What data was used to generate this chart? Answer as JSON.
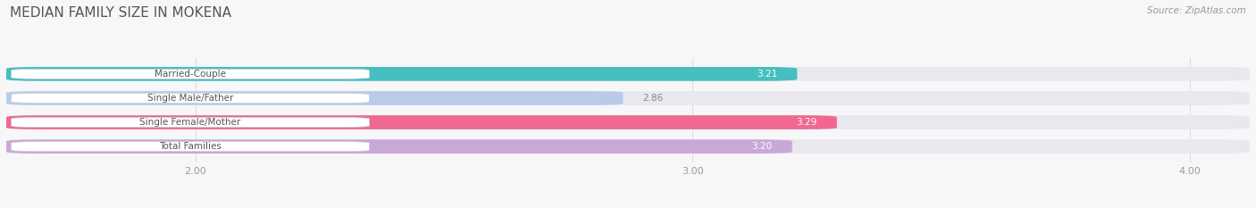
{
  "title": "MEDIAN FAMILY SIZE IN MOKENA",
  "source": "Source: ZipAtlas.com",
  "categories": [
    "Married-Couple",
    "Single Male/Father",
    "Single Female/Mother",
    "Total Families"
  ],
  "values": [
    3.21,
    2.86,
    3.29,
    3.2
  ],
  "bar_colors": [
    "#45bfbf",
    "#b8ccea",
    "#f06892",
    "#c9a8d8"
  ],
  "bar_bg_color": "#e8e8ee",
  "label_bg_color": "#ffffff",
  "xlim_min": 1.62,
  "xlim_max": 4.12,
  "xticks": [
    2.0,
    3.0,
    4.0
  ],
  "xtick_labels": [
    "2.00",
    "3.00",
    "4.00"
  ],
  "label_fontsize": 7.5,
  "value_fontsize": 7.5,
  "title_fontsize": 11,
  "bar_height": 0.58,
  "background_color": "#f7f7f9",
  "label_text_color": "#555555",
  "value_color_on_bar": "#ffffff",
  "value_color_off_bar": "#888888"
}
